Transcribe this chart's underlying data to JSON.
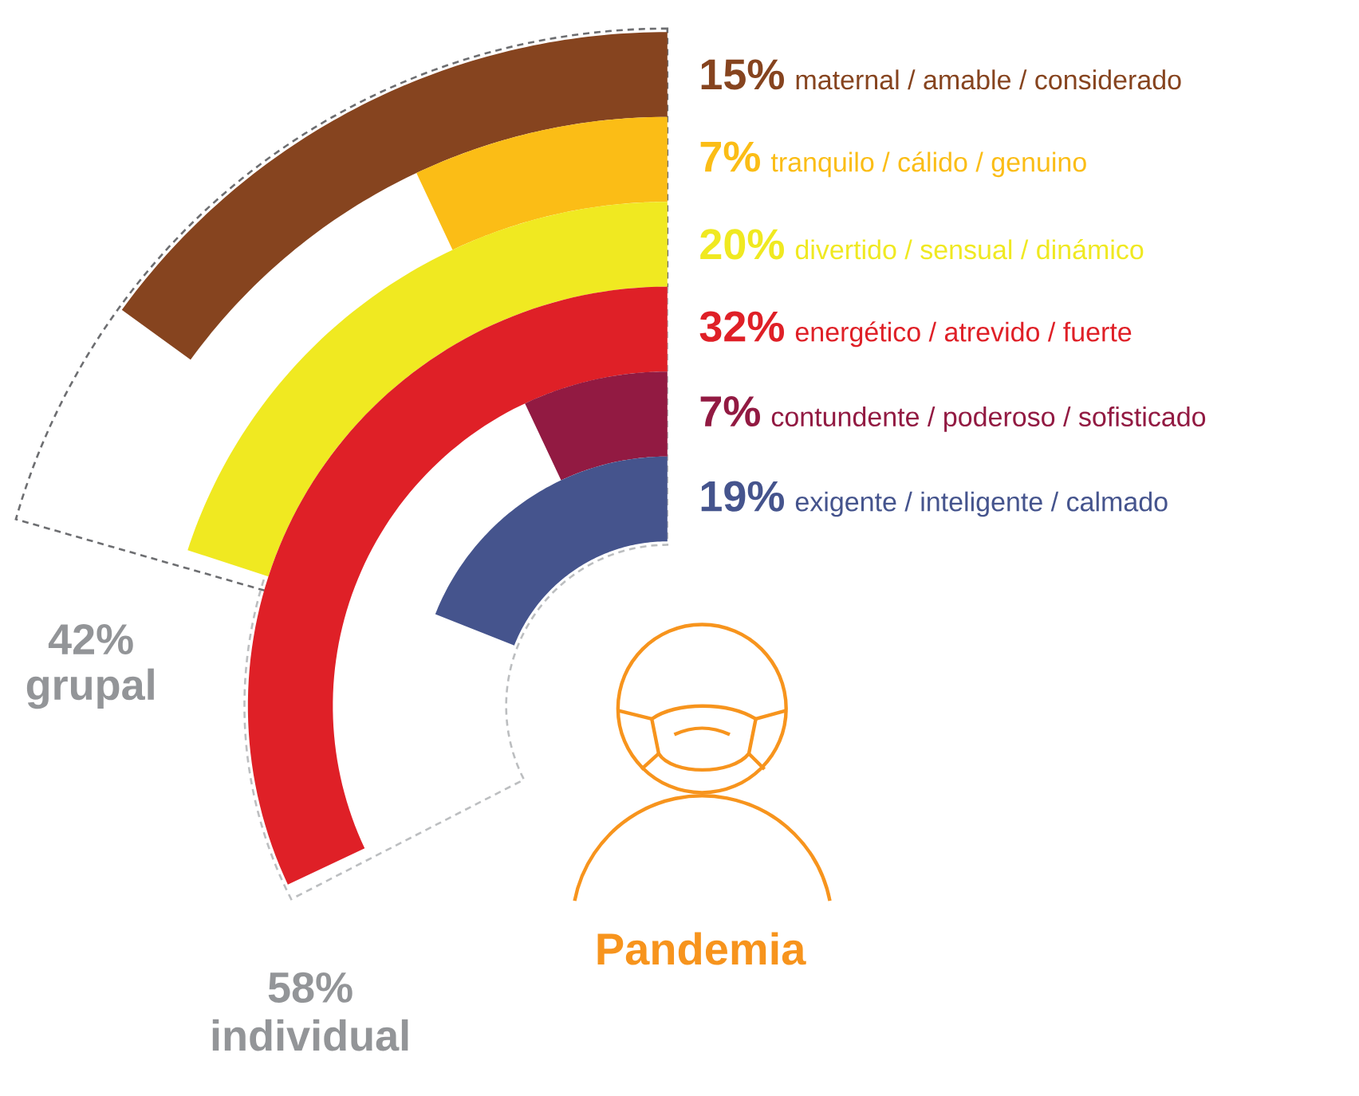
{
  "chart_data": {
    "type": "other",
    "title": "Pandemia",
    "categories": [
      "maternal / amable / considerado",
      "tranquilo / cálido / genuino",
      "divertido / sensual / dinámico",
      "energético / atrevido / fuerte",
      "contundente / poderoso / sofisticado",
      "exigente / inteligente / calmado"
    ],
    "values": [
      15,
      7,
      20,
      32,
      7,
      19
    ],
    "value_labels": [
      "15%",
      "7%",
      "20%",
      "32%",
      "7%",
      "19%"
    ],
    "data_labels": true,
    "colors": [
      "#86441f",
      "#fbbd16",
      "#f0e921",
      "#df2027",
      "#921a42",
      "#45548d"
    ],
    "annotations": [
      "42%",
      "grupal",
      "58%",
      "individual"
    ]
  }
}
